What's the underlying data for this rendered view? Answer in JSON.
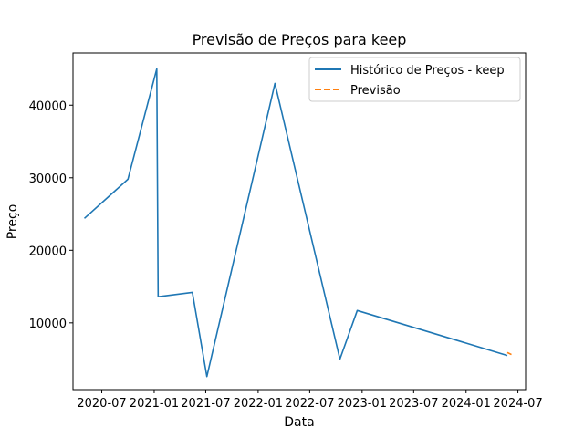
{
  "chart_data": {
    "type": "line",
    "title": "Previsão de Preços para keep",
    "xlabel": "Data",
    "ylabel": "Preço",
    "x_axis_type": "date",
    "xlim": [
      "2020-03-22",
      "2024-07-28"
    ],
    "ylim": [
      800,
      47200
    ],
    "x_ticks": [
      {
        "date": "2020-07-01",
        "label": "2020-07"
      },
      {
        "date": "2021-01-01",
        "label": "2021-01"
      },
      {
        "date": "2021-07-01",
        "label": "2021-07"
      },
      {
        "date": "2022-01-01",
        "label": "2022-01"
      },
      {
        "date": "2022-07-01",
        "label": "2022-07"
      },
      {
        "date": "2023-01-01",
        "label": "2023-01"
      },
      {
        "date": "2023-07-01",
        "label": "2023-07"
      },
      {
        "date": "2024-01-01",
        "label": "2024-01"
      },
      {
        "date": "2024-07-01",
        "label": "2024-07"
      }
    ],
    "y_ticks": [
      10000,
      20000,
      30000,
      40000
    ],
    "grid": false,
    "legend_position": "top-right",
    "series": [
      {
        "name": "Histórico de Preços - keep",
        "color": "#1f77b4",
        "style": "solid",
        "points": [
          {
            "x": "2020-05-01",
            "y": 24400
          },
          {
            "x": "2020-10-01",
            "y": 29800
          },
          {
            "x": "2021-01-10",
            "y": 45000
          },
          {
            "x": "2021-01-15",
            "y": 13600
          },
          {
            "x": "2021-05-15",
            "y": 14200
          },
          {
            "x": "2021-07-05",
            "y": 2600
          },
          {
            "x": "2022-03-01",
            "y": 43000
          },
          {
            "x": "2022-10-15",
            "y": 5000
          },
          {
            "x": "2022-12-15",
            "y": 11700
          },
          {
            "x": "2024-05-25",
            "y": 5500
          }
        ]
      },
      {
        "name": "Previsão",
        "color": "#ff7f0e",
        "style": "dashed",
        "points": [
          {
            "x": "2024-05-25",
            "y": 5900
          },
          {
            "x": "2024-06-10",
            "y": 5600
          }
        ]
      }
    ]
  }
}
